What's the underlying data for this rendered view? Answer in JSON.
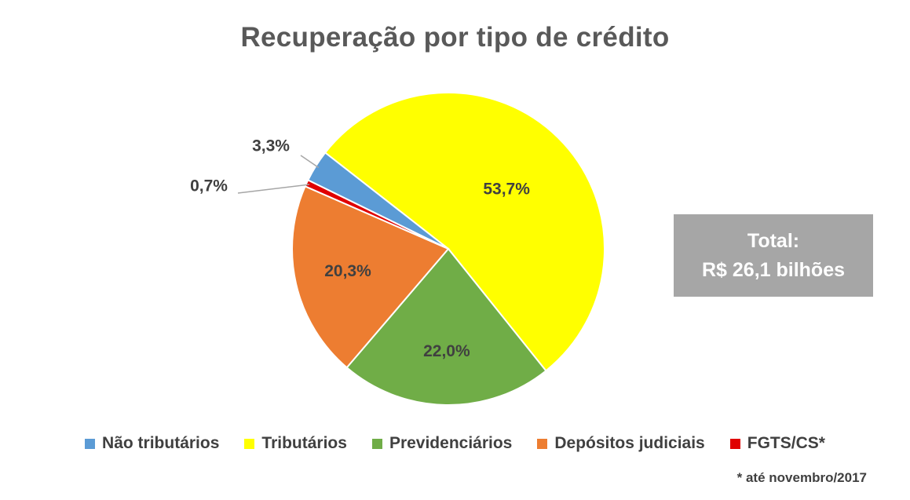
{
  "chart_data": {
    "type": "pie",
    "title": "Recuperação por tipo de crédito",
    "unit": "percent",
    "slices": [
      {
        "name": "Não tributários",
        "value": 3.3,
        "label": "3,3%",
        "color": "#5b9bd5",
        "label_placement": "outside"
      },
      {
        "name": "Tributários",
        "value": 53.7,
        "label": "53,7%",
        "color": "#ffff00",
        "label_placement": "inside"
      },
      {
        "name": "Previdenciários",
        "value": 22.0,
        "label": "22,0%",
        "color": "#70ad47",
        "label_placement": "inside"
      },
      {
        "name": "Depósitos judiciais",
        "value": 20.3,
        "label": "20,3%",
        "color": "#ed7d31",
        "label_placement": "inside"
      },
      {
        "name": "FGTS/CS*",
        "value": 0.7,
        "label": "0,7%",
        "color": "#e00000",
        "label_placement": "outside"
      }
    ],
    "legend_position": "bottom",
    "total_box": {
      "line1": "Total:",
      "line2": "R$ 26,1 bilhões"
    },
    "footnote": "* até novembro/2017"
  }
}
